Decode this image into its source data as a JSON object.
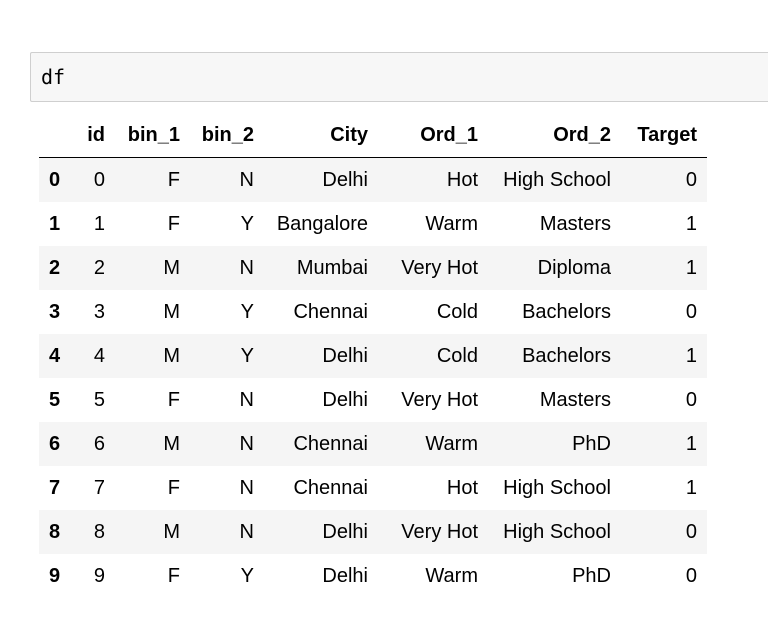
{
  "cell": {
    "code": "df"
  },
  "table": {
    "columns": [
      "",
      "id",
      "bin_1",
      "bin_2",
      "City",
      "Ord_1",
      "Ord_2",
      "Target"
    ],
    "rows": [
      {
        "index": "0",
        "values": [
          "0",
          "F",
          "N",
          "Delhi",
          "Hot",
          "High School",
          "0"
        ]
      },
      {
        "index": "1",
        "values": [
          "1",
          "F",
          "Y",
          "Bangalore",
          "Warm",
          "Masters",
          "1"
        ]
      },
      {
        "index": "2",
        "values": [
          "2",
          "M",
          "N",
          "Mumbai",
          "Very Hot",
          "Diploma",
          "1"
        ]
      },
      {
        "index": "3",
        "values": [
          "3",
          "M",
          "Y",
          "Chennai",
          "Cold",
          "Bachelors",
          "0"
        ]
      },
      {
        "index": "4",
        "values": [
          "4",
          "M",
          "Y",
          "Delhi",
          "Cold",
          "Bachelors",
          "1"
        ]
      },
      {
        "index": "5",
        "values": [
          "5",
          "F",
          "N",
          "Delhi",
          "Very Hot",
          "Masters",
          "0"
        ]
      },
      {
        "index": "6",
        "values": [
          "6",
          "M",
          "N",
          "Chennai",
          "Warm",
          "PhD",
          "1"
        ]
      },
      {
        "index": "7",
        "values": [
          "7",
          "F",
          "N",
          "Chennai",
          "Hot",
          "High School",
          "1"
        ]
      },
      {
        "index": "8",
        "values": [
          "8",
          "M",
          "N",
          "Delhi",
          "Very Hot",
          "High School",
          "0"
        ]
      },
      {
        "index": "9",
        "values": [
          "9",
          "F",
          "Y",
          "Delhi",
          "Warm",
          "PhD",
          "0"
        ]
      }
    ]
  }
}
